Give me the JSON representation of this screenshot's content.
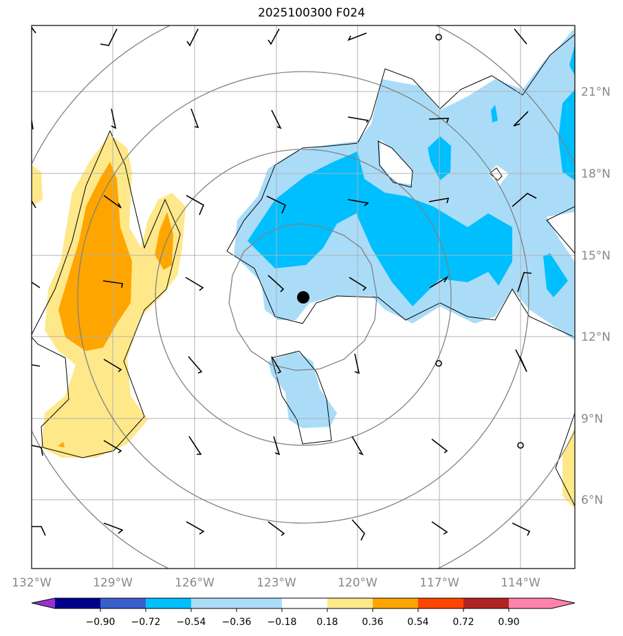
{
  "title": "2025100300 F024",
  "map": {
    "lon_ticks": [
      {
        "lon": -132,
        "label": "132°W"
      },
      {
        "lon": -129,
        "label": "129°W"
      },
      {
        "lon": -126,
        "label": "126°W"
      },
      {
        "lon": -123,
        "label": "123°W"
      },
      {
        "lon": -120,
        "label": "120°W"
      },
      {
        "lon": -117,
        "label": "117°W"
      },
      {
        "lon": -114,
        "label": "114°W"
      }
    ],
    "lat_ticks": [
      {
        "lat": 21,
        "label": "21°N"
      },
      {
        "lat": 18,
        "label": "18°N"
      },
      {
        "lat": 15,
        "label": "15°N"
      },
      {
        "lat": 12,
        "label": "12°N"
      },
      {
        "lat": 9,
        "label": "9°N"
      },
      {
        "lat": 6,
        "label": "6°N"
      }
    ],
    "storm_center": {
      "lon": -122.0,
      "lat": 13.5
    },
    "colors": {
      "light_blue": "#aadcf8",
      "blue": "#00bfff",
      "light_yellow": "#ffe88a",
      "orange": "#ffa500",
      "grid": "#b0b0b0",
      "ring": "#808080"
    }
  },
  "colorbar": {
    "labels": [
      "−0.90",
      "−0.72",
      "−0.54",
      "−0.36",
      "−0.18",
      "0.18",
      "0.36",
      "0.54",
      "0.72",
      "0.90"
    ],
    "colors": [
      "#9932cc",
      "#00008b",
      "#3a5fcd",
      "#00bfff",
      "#aadcf8",
      "#ffffff",
      "#ffe88a",
      "#ffa500",
      "#ff4500",
      "#b22222",
      "#ff82ab"
    ]
  }
}
